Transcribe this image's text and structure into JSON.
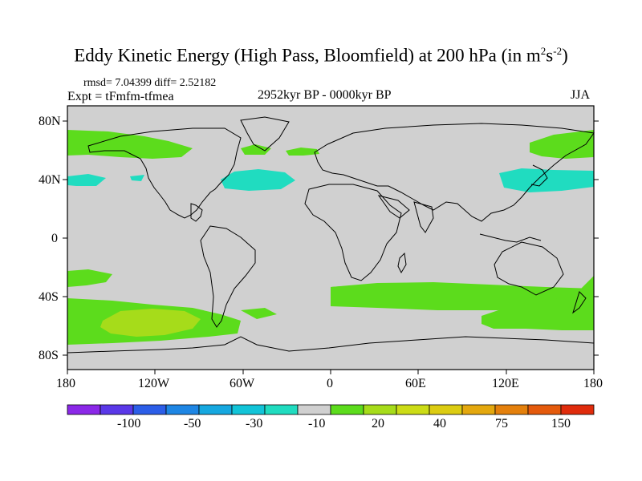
{
  "title": {
    "text": "Eddy Kinetic Energy (High Pass, Bloomfield) at 200 hPa (in m",
    "sup1": "2",
    "mid": "s",
    "sup2": "-2",
    "close": ")"
  },
  "stats": "rmsd= 7.04399 diff= 2.52182",
  "experiment": "Expt = tFmfm-tfmea",
  "period": "2952kyr BP - 0000kyr BP",
  "season": "JJA",
  "colors": {
    "land_outline": "#000000",
    "neutral": "#d0d0d0",
    "pos_20": "#5cdc1c",
    "pos_30": "#a6dc1a",
    "neg_10": "#20dcc0"
  },
  "map": {
    "lat_ticks": [
      "80N",
      "40N",
      "0",
      "40S",
      "80S"
    ],
    "lon_ticks": [
      "180",
      "120W",
      "60W",
      "0",
      "60E",
      "120E",
      "180"
    ]
  },
  "colorbar": {
    "colors": [
      "#8b28e8",
      "#5a38e8",
      "#2c5ee8",
      "#1e86e4",
      "#16a8e0",
      "#12c4d8",
      "#20dcc0",
      "#d0d0d0",
      "#5cdc1c",
      "#a6dc1a",
      "#ccdc16",
      "#dccc12",
      "#e4a80e",
      "#e4800c",
      "#e45a0c",
      "#e02c0c"
    ],
    "labels": [
      "-100",
      "-50",
      "-30",
      "-10",
      "20",
      "40",
      "75",
      "150"
    ]
  }
}
